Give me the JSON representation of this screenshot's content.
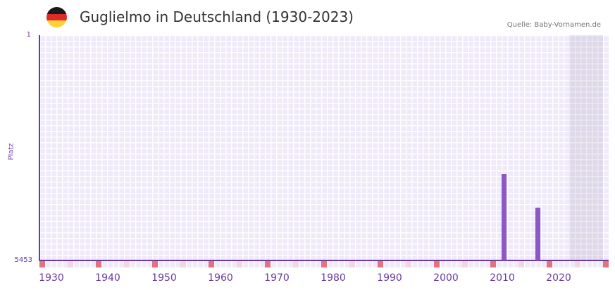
{
  "header": {
    "title": "Guglielmo in Deutschland (1930-2023)",
    "source": "Quelle: Baby-Vornamen.de",
    "flag": "germany-flag",
    "flag_colors": [
      "#1a1a1a",
      "#dd2a2a",
      "#fdd335"
    ]
  },
  "colors": {
    "bar": "#8e57c8",
    "axis": "#6a3aa0",
    "marker_decade": "#e5717a",
    "marker_half": "#f3d6df",
    "grid_bg": "#efe9f9"
  },
  "chart_data": {
    "type": "bar",
    "title": "Guglielmo in Deutschland (1930-2023)",
    "xlabel": "",
    "ylabel": "Platz",
    "ylim": [
      5453,
      1
    ],
    "y_inverted": true,
    "y_ticks": [
      "1",
      "5453"
    ],
    "x_ticks": [
      "1930",
      "1940",
      "1950",
      "1960",
      "1970",
      "1980",
      "1990",
      "2000",
      "2010",
      "2020"
    ],
    "x_range": [
      1930,
      2030
    ],
    "grid": true,
    "shaded_region": [
      2024,
      2030
    ],
    "series": [
      {
        "name": "Platz",
        "x": [
          2012,
          2018
        ],
        "values": [
          3357,
          4175
        ]
      }
    ]
  },
  "axis": {
    "y_top": "1",
    "y_bottom": "5453",
    "y_label": "Platz"
  }
}
